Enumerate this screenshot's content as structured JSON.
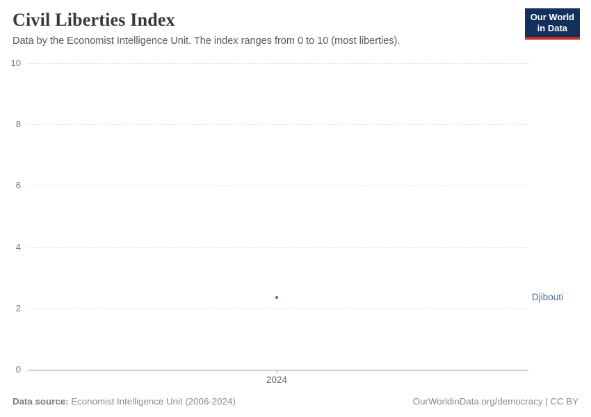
{
  "header": {
    "title": "Civil Liberties Index",
    "subtitle": "Data by the Economist Intelligence Unit. The index ranges from 0 to 10 (most liberties).",
    "logo": {
      "line1": "Our World",
      "line2": "in Data"
    }
  },
  "chart_data": {
    "type": "scatter",
    "title": "Civil Liberties Index",
    "series": [
      {
        "name": "Djibouti",
        "color": "#4c6a9c",
        "x": [
          2024
        ],
        "values": [
          2.35
        ]
      }
    ],
    "entity_label": "Djibouti",
    "xticks": [
      "2024"
    ],
    "yticks": [
      0,
      2,
      4,
      6,
      8,
      10
    ],
    "ylim": [
      0,
      10
    ],
    "xlabel": "",
    "ylabel": "",
    "grid": "horizontal-dashed",
    "legend_position": "right-of-point"
  },
  "colors": {
    "grid": "#e0e0e0",
    "axis": "#8f8f8f",
    "tick_label": "#737373",
    "series": "#4c6a9c",
    "logo_bg": "#12305b",
    "logo_accent": "#cc2a22"
  },
  "footer": {
    "source_label": "Data source:",
    "source_value": " Economist Intelligence Unit (2006-2024)",
    "url": "OurWorldinData.org/democracy",
    "separator": " | ",
    "license": "CC BY"
  }
}
